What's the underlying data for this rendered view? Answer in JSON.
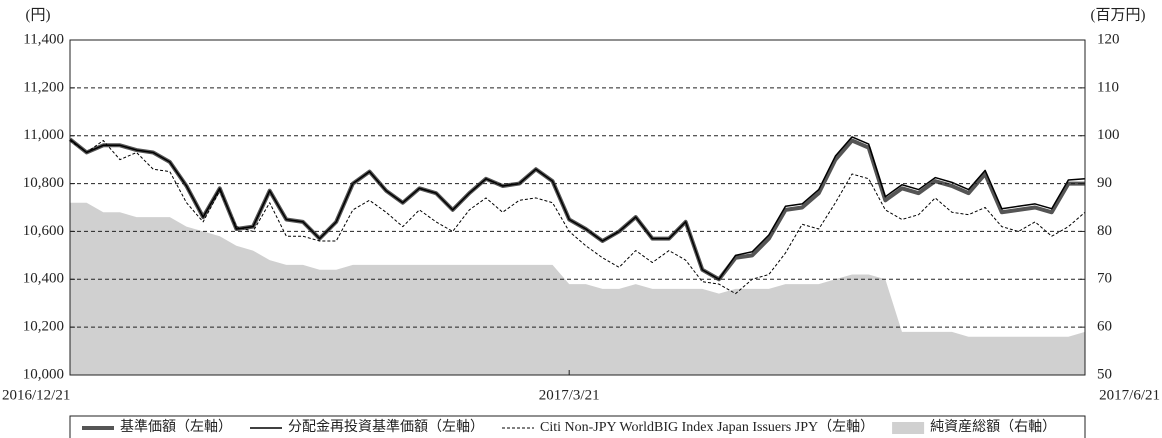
{
  "chart_data": {
    "type": "line",
    "y_label": "(円)",
    "y2_label": "(百万円)",
    "categories": [
      "2016/12/21",
      null,
      null,
      null,
      null,
      null,
      null,
      null,
      null,
      null,
      null,
      null,
      null,
      null,
      null,
      null,
      null,
      null,
      null,
      null,
      null,
      null,
      null,
      null,
      null,
      null,
      null,
      null,
      null,
      null,
      "2017/3/21",
      null,
      null,
      null,
      null,
      null,
      null,
      null,
      null,
      null,
      null,
      null,
      null,
      null,
      null,
      null,
      null,
      null,
      null,
      null,
      null,
      null,
      null,
      null,
      null,
      null,
      null,
      null,
      null,
      null,
      null,
      "2017/6/21"
    ],
    "ylim": [
      10000,
      11400
    ],
    "yticks": [
      {
        "value": 10000,
        "label": "10,000"
      },
      {
        "value": 10200,
        "label": "10,200"
      },
      {
        "value": 10400,
        "label": "10,400"
      },
      {
        "value": 10600,
        "label": "10,600"
      },
      {
        "value": 10800,
        "label": "10,800"
      },
      {
        "value": 11000,
        "label": "11,000"
      },
      {
        "value": 11200,
        "label": "11,200"
      },
      {
        "value": 11400,
        "label": "11,400"
      }
    ],
    "y2lim": [
      50,
      120
    ],
    "y2ticks": [
      50,
      60,
      70,
      80,
      90,
      100,
      110,
      120
    ],
    "grid": true,
    "legend": "bottom",
    "series": [
      {
        "name": "純資産総額（右軸）",
        "type": "area",
        "axis": "y2",
        "color": "#d0d0d0",
        "values": [
          86,
          86,
          84,
          84,
          83,
          83,
          83,
          81,
          80,
          79,
          77,
          76,
          74,
          73,
          73,
          72,
          72,
          73,
          73,
          73,
          73,
          73,
          73,
          73,
          73,
          73,
          73,
          73,
          73,
          73,
          69,
          69,
          68,
          68,
          69,
          68,
          68,
          68,
          68,
          67,
          68,
          68,
          68,
          69,
          69,
          69,
          70,
          71,
          71,
          70,
          59,
          59,
          59,
          59,
          58,
          58,
          58,
          58,
          58,
          58,
          58,
          59
        ]
      },
      {
        "name": "基準価額（左軸）",
        "color": "#555555",
        "width": 4,
        "dash": "solid",
        "values": [
          10985,
          10930,
          10960,
          10960,
          10940,
          10930,
          10890,
          10790,
          10660,
          10780,
          10610,
          10620,
          10770,
          10650,
          10640,
          10570,
          10640,
          10800,
          10850,
          10770,
          10720,
          10780,
          10760,
          10690,
          10760,
          10820,
          10790,
          10800,
          10860,
          10810,
          10650,
          10610,
          10560,
          10600,
          10660,
          10570,
          10570,
          10640,
          10440,
          10400,
          10490,
          10500,
          10570,
          10690,
          10700,
          10760,
          10900,
          10980,
          10950,
          10730,
          10780,
          10760,
          10810,
          10790,
          10760,
          10840,
          10680,
          10690,
          10700,
          10680,
          10800,
          10800
        ]
      },
      {
        "name": "分配金再投資基準価額（左軸）",
        "color": "#000000",
        "width": 1.5,
        "dash": "solid",
        "values": [
          10985,
          10930,
          10960,
          10960,
          10940,
          10930,
          10890,
          10790,
          10660,
          10780,
          10610,
          10620,
          10770,
          10650,
          10640,
          10570,
          10640,
          10800,
          10850,
          10770,
          10720,
          10780,
          10760,
          10690,
          10760,
          10820,
          10790,
          10800,
          10860,
          10810,
          10650,
          10610,
          10560,
          10600,
          10660,
          10570,
          10570,
          10640,
          10440,
          10400,
          10500,
          10515,
          10585,
          10705,
          10715,
          10775,
          10915,
          10995,
          10965,
          10745,
          10795,
          10775,
          10825,
          10805,
          10775,
          10855,
          10695,
          10705,
          10715,
          10695,
          10815,
          10820
        ]
      },
      {
        "name": "Citi Non-JPY WorldBIG Index Japan Issuers JPY（左軸）",
        "color": "#000000",
        "width": 1,
        "dash": "dashed",
        "values": [
          10980,
          10930,
          10980,
          10900,
          10930,
          10860,
          10850,
          10720,
          10640,
          10770,
          10620,
          10600,
          10720,
          10580,
          10580,
          10560,
          10560,
          10690,
          10730,
          10680,
          10620,
          10690,
          10640,
          10600,
          10690,
          10740,
          10680,
          10730,
          10740,
          10720,
          10600,
          10540,
          10490,
          10450,
          10520,
          10470,
          10520,
          10480,
          10390,
          10380,
          10340,
          10400,
          10420,
          10510,
          10630,
          10610,
          10720,
          10840,
          10820,
          10690,
          10650,
          10670,
          10740,
          10680,
          10670,
          10700,
          10620,
          10600,
          10640,
          10580,
          10620,
          10680
        ]
      }
    ]
  }
}
